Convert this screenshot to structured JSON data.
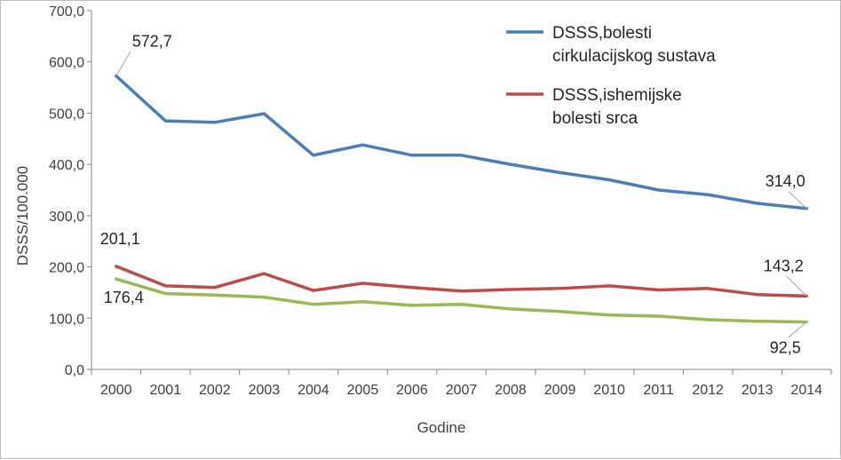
{
  "chart_data": {
    "type": "line",
    "xlabel": "Godine",
    "ylabel": "DSSS/100.000",
    "ylim": [
      0,
      700
    ],
    "yticks": [
      "0,0",
      "100,0",
      "200,0",
      "300,0",
      "400,0",
      "500,0",
      "600,0",
      "700,0"
    ],
    "categories": [
      "2000",
      "2001",
      "2002",
      "2003",
      "2004",
      "2005",
      "2006",
      "2007",
      "2008",
      "2009",
      "2010",
      "2011",
      "2012",
      "2013",
      "2014"
    ],
    "grid": false,
    "legend_position": "top-right",
    "series": [
      {
        "name": "DSSS,bolesti cirkulacijskog sustava",
        "legend_lines": [
          "DSSS,bolesti",
          "cirkulacijskog sustava"
        ],
        "color": "#4a7ebb",
        "values": [
          572.7,
          485,
          482,
          499,
          418,
          438,
          418,
          418,
          400,
          384,
          370,
          350,
          341,
          324,
          314.0
        ],
        "labels": {
          "first": "572,7",
          "last": "314,0"
        }
      },
      {
        "name": "DSSS,ishemijske bolesti srca",
        "legend_lines": [
          "DSSS,ishemijske",
          "bolesti srca"
        ],
        "color": "#be4b48",
        "values": [
          201.1,
          163,
          160,
          187,
          154,
          168,
          160,
          153,
          156,
          158,
          163,
          155,
          158,
          146,
          143.2
        ],
        "labels": {
          "first": "201,1",
          "last": "143,2"
        }
      },
      {
        "color": "#98b954",
        "values": [
          176.4,
          148,
          145,
          141,
          127,
          132,
          125,
          127,
          118,
          113,
          106,
          104,
          97,
          94,
          92.5
        ],
        "labels": {
          "first": "176,4",
          "last": "92,5"
        }
      }
    ]
  }
}
